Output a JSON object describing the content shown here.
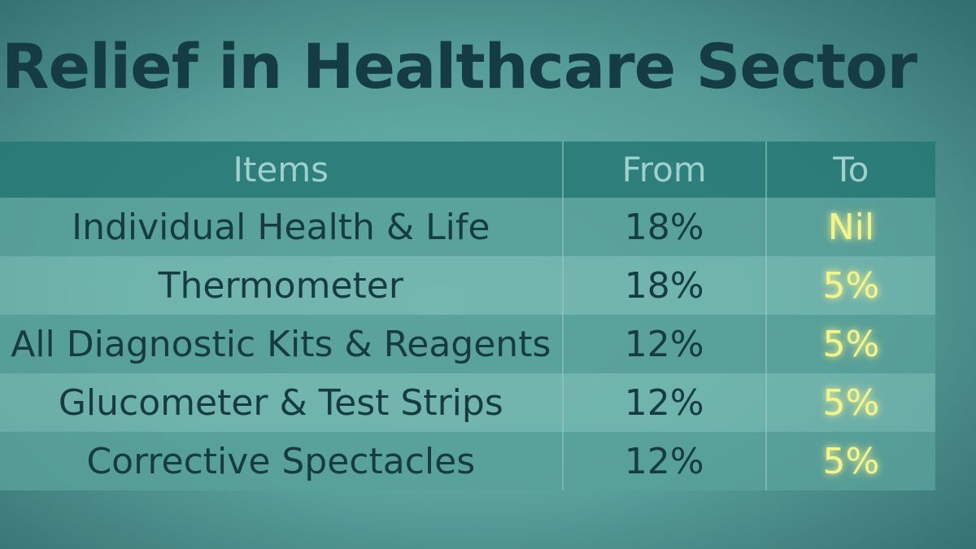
{
  "title": "Relief in Healthcare Sector",
  "table": {
    "headers": {
      "items": "Items",
      "from": "From",
      "to": "To"
    },
    "rows": [
      {
        "item": "Individual Health & Life",
        "from": "18%",
        "to": "Nil"
      },
      {
        "item": "Thermometer",
        "from": "18%",
        "to": "5%"
      },
      {
        "item": "All Diagnostic Kits & Reagents",
        "from": "12%",
        "to": "5%"
      },
      {
        "item": "Glucometer & Test Strips",
        "from": "12%",
        "to": "5%"
      },
      {
        "item": "Corrective Spectacles",
        "from": "12%",
        "to": "5%"
      }
    ]
  },
  "colors": {
    "title_text": "#143c42",
    "header_bg": "#267876",
    "header_text": "#9ed1cb",
    "body_text": "#163c42",
    "to_value_glow": "#f3f48c"
  }
}
